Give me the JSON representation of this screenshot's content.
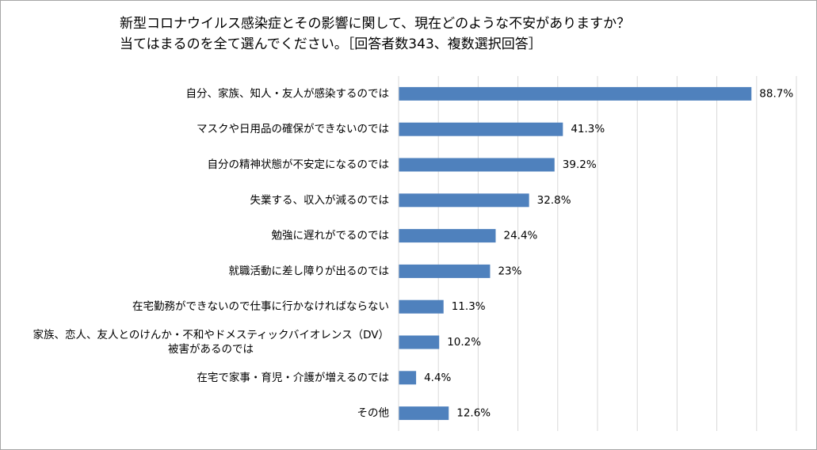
{
  "chart_data": {
    "type": "bar",
    "orientation": "horizontal",
    "title_lines": [
      "新型コロナウイルス感染症とその影響に関して、現在どのような不安がありますか？",
      "当てはまるのを全て選んでください。［回答者数343、複数選択回答］"
    ],
    "categories": [
      "自分、家族、知人・友人が感染するのでは",
      "マスクや日用品の確保ができないのでは",
      "自分の精神状態が不安定になるのでは",
      "失業する、収入が減るのでは",
      "勉強に遅れがでるのでは",
      "就職活動に差し障りが出るのでは",
      "在宅勤務ができないので仕事に行かなければならない",
      "家族、恋人、友人とのけんか・不和やドメスティックバイオレンス（DV）被害があるのでは",
      "在宅で家事・育児・介護が増えるのでは",
      "その他"
    ],
    "category_lines": [
      [
        "自分、家族、知人・友人が感染するのでは"
      ],
      [
        "マスクや日用品の確保ができないのでは"
      ],
      [
        "自分の精神状態が不安定になるのでは"
      ],
      [
        "失業する、収入が減るのでは"
      ],
      [
        "勉強に遅れがでるのでは"
      ],
      [
        "就職活動に差し障りが出るのでは"
      ],
      [
        "在宅勤務ができないので仕事に行かなければならない"
      ],
      [
        "家族、恋人、友人とのけんか・不和やドメスティックバイオレンス（DV）",
        "被害があるのでは"
      ],
      [
        "在宅で家事・育児・介護が増えるのでは"
      ],
      [
        "その他"
      ]
    ],
    "values": [
      88.7,
      41.3,
      39.2,
      32.8,
      24.4,
      23,
      11.3,
      10.2,
      4.4,
      12.6
    ],
    "value_labels": [
      "88.7%",
      "41.3%",
      "39.2%",
      "32.8%",
      "24.4%",
      "23%",
      "11.3%",
      "10.2%",
      "4.4%",
      "12.6%"
    ],
    "xlim": [
      0,
      100
    ],
    "grid_step": 10,
    "grid": true,
    "bar_color": "#4f81bd",
    "grid_color": "#d9d9d9"
  }
}
